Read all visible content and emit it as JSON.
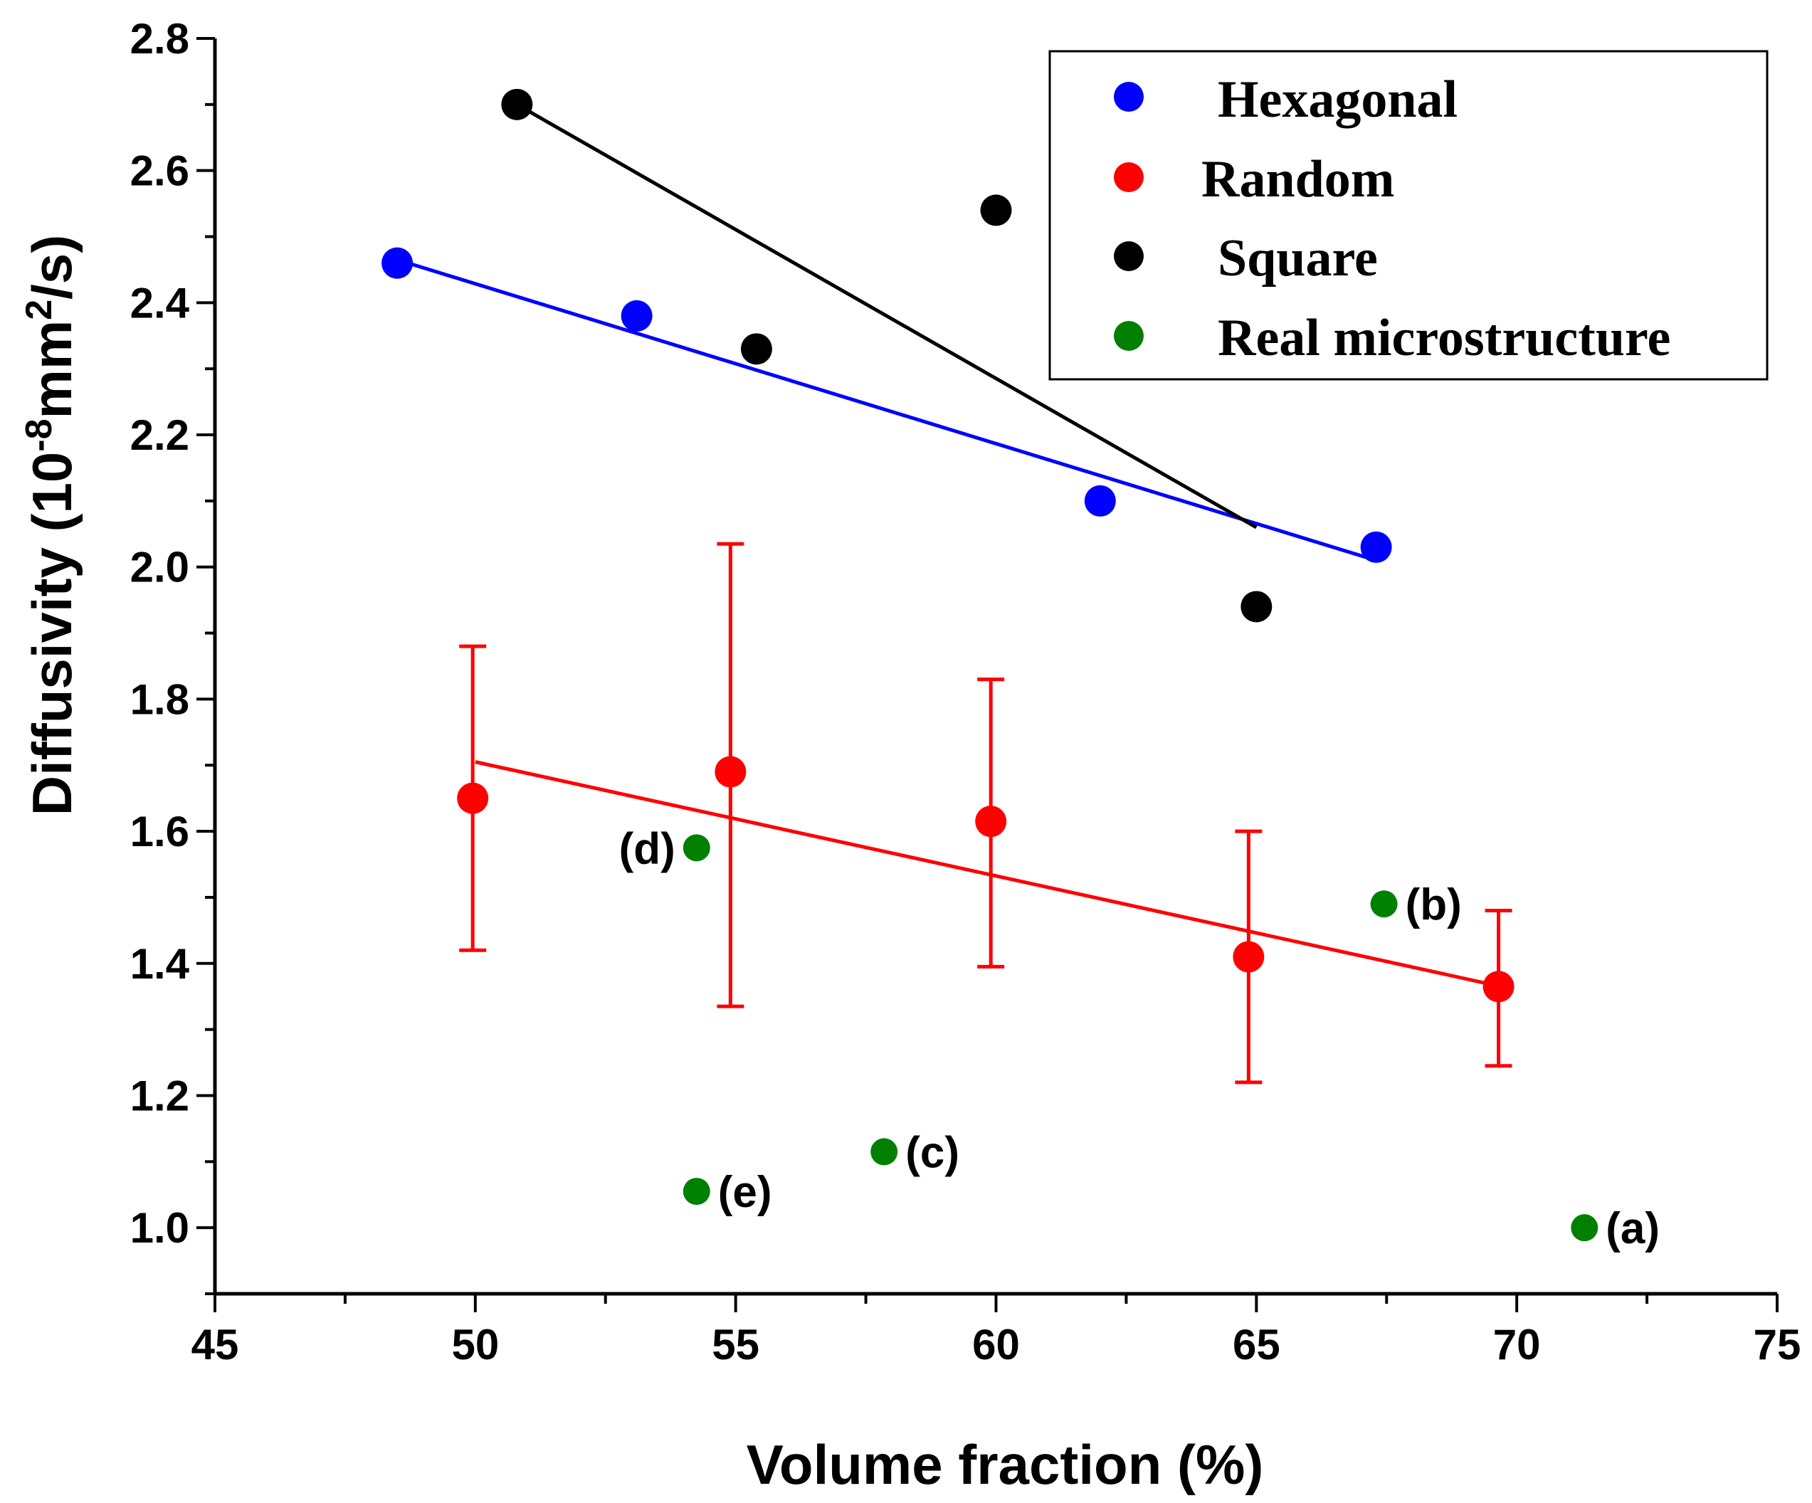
{
  "chart_data": {
    "type": "scatter",
    "title": "",
    "xlabel": "Volume fraction (%)",
    "ylabel": "Diffusivity (10-8mm2/s)",
    "ylabel_parts": {
      "pre": "Diffusivity (10",
      "sup1": "-8",
      "mid": "mm",
      "sup2": "2",
      "post": "/s)"
    },
    "xlim": [
      45,
      75
    ],
    "ylim": [
      0.9,
      2.8
    ],
    "x_ticks": [
      45,
      50,
      55,
      60,
      65,
      70,
      75
    ],
    "x_tick_labels": [
      "45",
      "50",
      "55",
      "60",
      "65",
      "70",
      "75"
    ],
    "y_ticks": [
      1.0,
      1.2,
      1.4,
      1.6,
      1.8,
      2.0,
      2.2,
      2.4,
      2.6,
      2.8
    ],
    "y_tick_labels": [
      "1.0",
      "1.2",
      "1.4",
      "1.6",
      "1.8",
      "2.0",
      "2.2",
      "2.4",
      "2.6",
      "2.8"
    ],
    "grid": false,
    "legend_position": "top-right",
    "series": [
      {
        "name": "Hexagonal",
        "color": "#0000ff",
        "x": [
          48.5,
          53.1,
          62.0,
          67.3
        ],
        "y": [
          2.46,
          2.38,
          2.1,
          2.03
        ],
        "fit": {
          "x": [
            48.5,
            67.3
          ],
          "y": [
            2.465,
            2.01
          ]
        }
      },
      {
        "name": "Random",
        "color": "#ff0000",
        "x": [
          49.95,
          54.9,
          59.9,
          64.85,
          69.65
        ],
        "y": [
          1.65,
          1.69,
          1.615,
          1.41,
          1.365
        ],
        "error_low": [
          1.42,
          1.335,
          1.395,
          1.22,
          1.245
        ],
        "error_high": [
          1.88,
          2.035,
          1.83,
          1.6,
          1.48
        ],
        "fit": {
          "x": [
            50.0,
            69.7
          ],
          "y": [
            1.705,
            1.365
          ]
        }
      },
      {
        "name": "Square",
        "color": "#000000",
        "x": [
          50.8,
          60.0,
          55.4,
          65.0
        ],
        "y": [
          2.7,
          2.54,
          2.33,
          1.94
        ],
        "fit": {
          "x": [
            50.8,
            65.0
          ],
          "y": [
            2.7,
            2.06
          ]
        }
      },
      {
        "name": "Real microstructure",
        "color": "#008000",
        "x": [
          71.3,
          67.45,
          57.85,
          54.25,
          54.25
        ],
        "y": [
          1.0,
          1.49,
          1.115,
          1.575,
          1.055
        ],
        "labels": [
          "(a)",
          "(b)",
          "(c)",
          "(d)",
          "(e)"
        ]
      }
    ]
  }
}
